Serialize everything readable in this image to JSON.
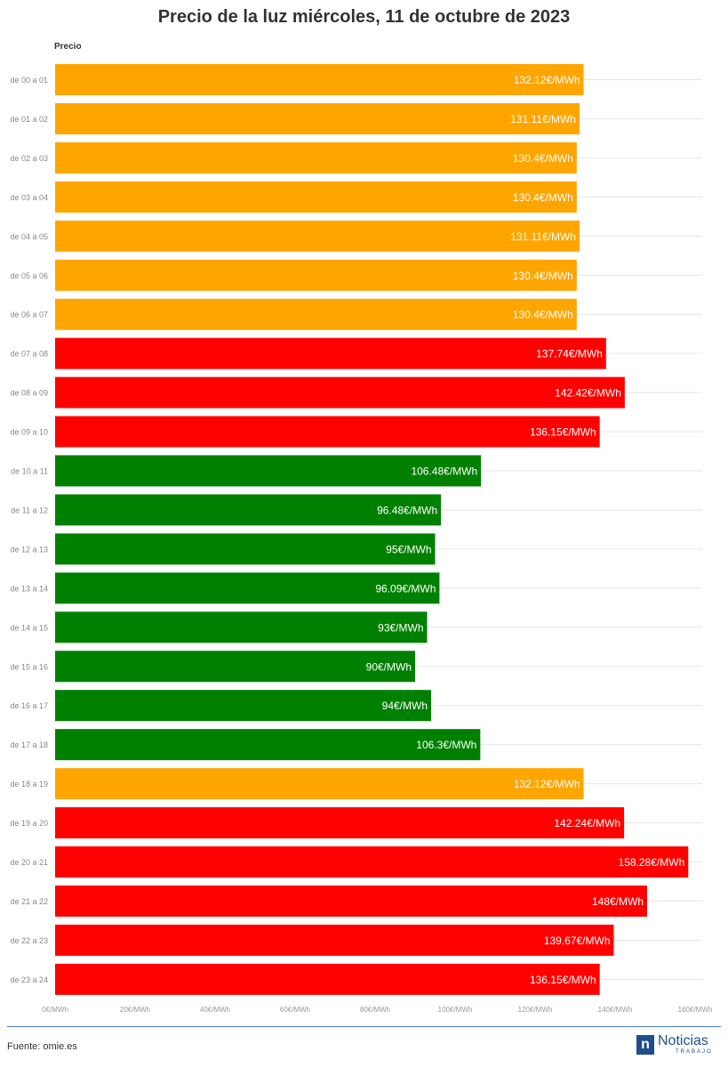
{
  "chart_data": {
    "type": "bar",
    "orientation": "horizontal",
    "title": "Precio de la luz miércoles, 11 de octubre de 2023",
    "series_label": "Precio",
    "categories": [
      "de 00 a 01",
      "de 01 a 02",
      "de 02 a 03",
      "de 03 a 04",
      "de 04 a 05",
      "de 05 a 06",
      "de 06 a 07",
      "de 07 a 08",
      "de 08 a 09",
      "de 09 a 10",
      "de 10 a 11",
      "de 11 a 12",
      "de 12 a 13",
      "de 13 a 14",
      "de 14 a 15",
      "de 15 a 16",
      "de 16 a 17",
      "de 17 a 18",
      "de 18 a 19",
      "de 19 a 20",
      "de 20 a 21",
      "de 21 a 22",
      "de 22 a 23",
      "de 23 a 24"
    ],
    "values": [
      132.12,
      131.11,
      130.4,
      130.4,
      131.11,
      130.4,
      130.4,
      137.74,
      142.42,
      136.15,
      106.48,
      96.48,
      95,
      96.09,
      93,
      90,
      94,
      106.3,
      132.12,
      142.24,
      158.28,
      148,
      139.67,
      136.15
    ],
    "data_labels": [
      "132.12€/MWh",
      "131.11€/MWh",
      "130.4€/MWh",
      "130.4€/MWh",
      "131.11€/MWh",
      "130.4€/MWh",
      "130.4€/MWh",
      "137.74€/MWh",
      "142.42€/MWh",
      "136.15€/MWh",
      "106.48€/MWh",
      "96.48€/MWh",
      "95€/MWh",
      "96.09€/MWh",
      "93€/MWh",
      "90€/MWh",
      "94€/MWh",
      "106.3€/MWh",
      "132.12€/MWh",
      "142.24€/MWh",
      "158.28€/MWh",
      "148€/MWh",
      "139.67€/MWh",
      "136.15€/MWh"
    ],
    "bar_levels": [
      "medio",
      "medio",
      "medio",
      "medio",
      "medio",
      "medio",
      "medio",
      "alto",
      "alto",
      "alto",
      "bajo",
      "bajo",
      "bajo",
      "bajo",
      "bajo",
      "bajo",
      "bajo",
      "bajo",
      "medio",
      "alto",
      "alto",
      "alto",
      "alto",
      "alto"
    ],
    "level_colors": {
      "bajo": "#008000",
      "medio": "#ffa500",
      "alto": "#ff0000"
    },
    "xlim": [
      0,
      160
    ],
    "x_ticks": [
      0,
      20,
      40,
      60,
      80,
      100,
      120,
      140,
      160
    ],
    "x_tick_labels": [
      "0€/MWh",
      "20€/MWh",
      "40€/MWh",
      "60€/MWh",
      "80€/MWh",
      "100€/MWh",
      "120€/MWh",
      "140€/MWh",
      "160€/MWh"
    ],
    "grid": true,
    "legend": "none"
  },
  "footer": {
    "source": "Fuente: omie.es",
    "logo_text": "Noticias",
    "logo_sub": "TRABAJO",
    "logo_mark": "n",
    "accent": "#1f4e8c"
  }
}
